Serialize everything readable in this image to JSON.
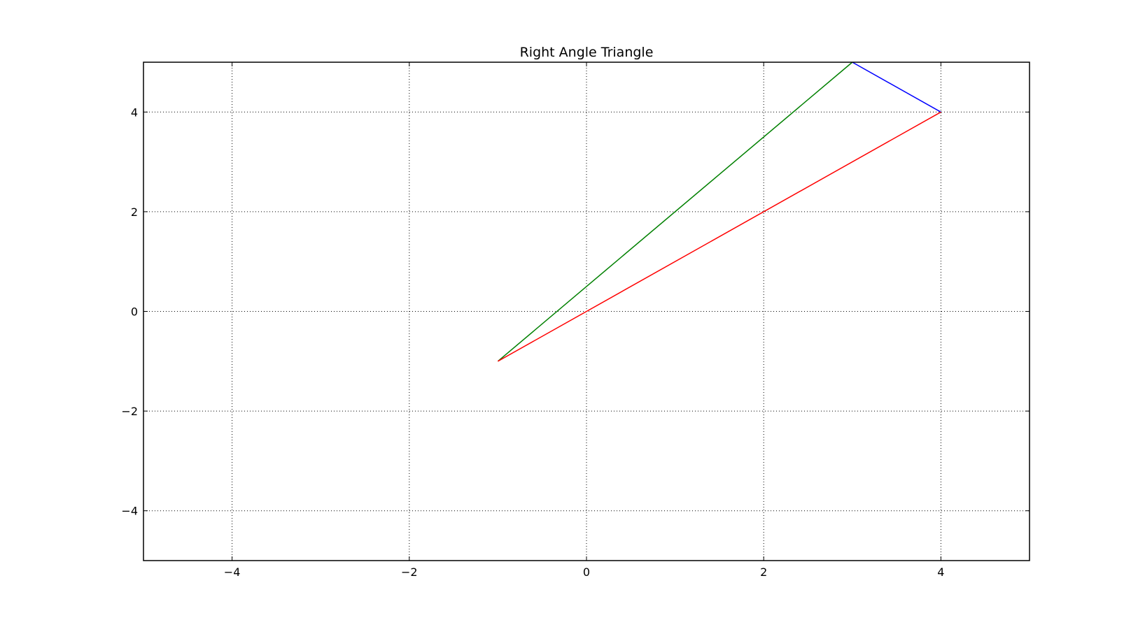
{
  "chart_data": {
    "type": "line",
    "title": "Right Angle Triangle",
    "xlabel": "",
    "ylabel": "",
    "xlim": [
      -5,
      5
    ],
    "ylim": [
      -5,
      5
    ],
    "xticks": [
      -4,
      -2,
      0,
      2,
      4
    ],
    "yticks": [
      -4,
      -2,
      0,
      2,
      4
    ],
    "xtick_labels": [
      "−4",
      "−2",
      "0",
      "2",
      "4"
    ],
    "ytick_labels": [
      "−4",
      "−2",
      "0",
      "2",
      "4"
    ],
    "grid": true,
    "grid_style": "dotted",
    "legend": "none",
    "series": [
      {
        "color": "#0000ff",
        "x": [
          3,
          4
        ],
        "y": [
          5,
          4
        ]
      },
      {
        "color": "#008000",
        "x": [
          -1,
          3
        ],
        "y": [
          -1,
          5
        ]
      },
      {
        "color": "#ff0000",
        "x": [
          -1,
          4
        ],
        "y": [
          -1,
          4
        ]
      }
    ]
  }
}
